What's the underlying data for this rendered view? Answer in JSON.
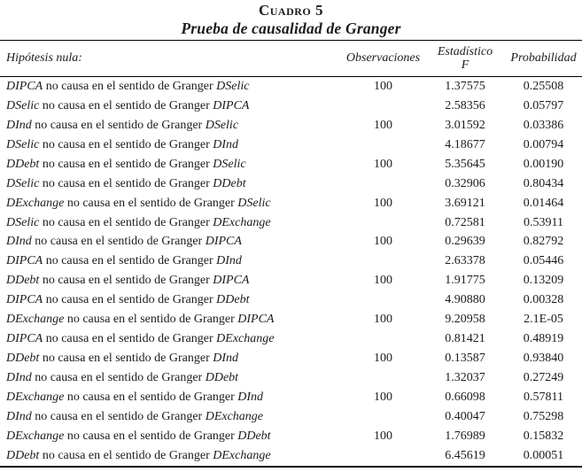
{
  "page": {
    "background": "#ffffff",
    "text_color": "#1c1c1c"
  },
  "table": {
    "title": "Cuadro 5",
    "subtitle": "Prueba de causalidad de Granger",
    "columns": {
      "hypothesis": "Hipótesis nula:",
      "observations": "Observaciones",
      "f_statistic_line1": "Estadístico",
      "f_statistic_line2": "F",
      "probability": "Probabilidad"
    },
    "causality_phrase": "no causa en el sentido de Granger",
    "rows": [
      {
        "cause": "DIPCA",
        "effect": "DSelic",
        "obs": "100",
        "f": "1.37575",
        "p": "0.25508"
      },
      {
        "cause": "DSelic",
        "effect": "DIPCA",
        "obs": "",
        "f": "2.58356",
        "p": "0.05797"
      },
      {
        "cause": "DInd",
        "effect": "DSelic",
        "obs": "100",
        "f": "3.01592",
        "p": "0.03386"
      },
      {
        "cause": "DSelic",
        "effect": "DInd",
        "obs": "",
        "f": "4.18677",
        "p": "0.00794"
      },
      {
        "cause": "DDebt",
        "effect": "DSelic",
        "obs": "100",
        "f": "5.35645",
        "p": "0.00190"
      },
      {
        "cause": "DSelic",
        "effect": "DDebt",
        "obs": "",
        "f": "0.32906",
        "p": "0.80434"
      },
      {
        "cause": "DExchange",
        "effect": "DSelic",
        "obs": "100",
        "f": "3.69121",
        "p": "0.01464"
      },
      {
        "cause": "DSelic",
        "effect": "DExchange",
        "obs": "",
        "f": "0.72581",
        "p": "0.53911"
      },
      {
        "cause": "DInd",
        "effect": "DIPCA",
        "obs": "100",
        "f": "0.29639",
        "p": "0.82792"
      },
      {
        "cause": "DIPCA",
        "effect": "DInd",
        "obs": "",
        "f": "2.63378",
        "p": "0.05446"
      },
      {
        "cause": "DDebt",
        "effect": "DIPCA",
        "obs": "100",
        "f": "1.91775",
        "p": "0.13209"
      },
      {
        "cause": "DIPCA",
        "effect": "DDebt",
        "obs": "",
        "f": "4.90880",
        "p": "0.00328"
      },
      {
        "cause": "DExchange",
        "effect": "DIPCA",
        "obs": "100",
        "f": "9.20958",
        "p": "2.1E-05"
      },
      {
        "cause": "DIPCA",
        "effect": "DExchange",
        "obs": "",
        "f": "0.81421",
        "p": "0.48919"
      },
      {
        "cause": "DDebt",
        "effect": "DInd",
        "obs": "100",
        "f": "0.13587",
        "p": "0.93840"
      },
      {
        "cause": "DInd",
        "effect": "DDebt",
        "obs": "",
        "f": "1.32037",
        "p": "0.27249"
      },
      {
        "cause": "DExchange",
        "effect": "DInd",
        "obs": "100",
        "f": "0.66098",
        "p": "0.57811"
      },
      {
        "cause": "DInd",
        "effect": "DExchange",
        "obs": "",
        "f": "0.40047",
        "p": "0.75298"
      },
      {
        "cause": "DExchange",
        "effect": "DDebt",
        "obs": "100",
        "f": "1.76989",
        "p": "0.15832"
      },
      {
        "cause": "DDebt",
        "effect": "DExchange",
        "obs": "",
        "f": "6.45619",
        "p": "0.00051"
      }
    ]
  }
}
